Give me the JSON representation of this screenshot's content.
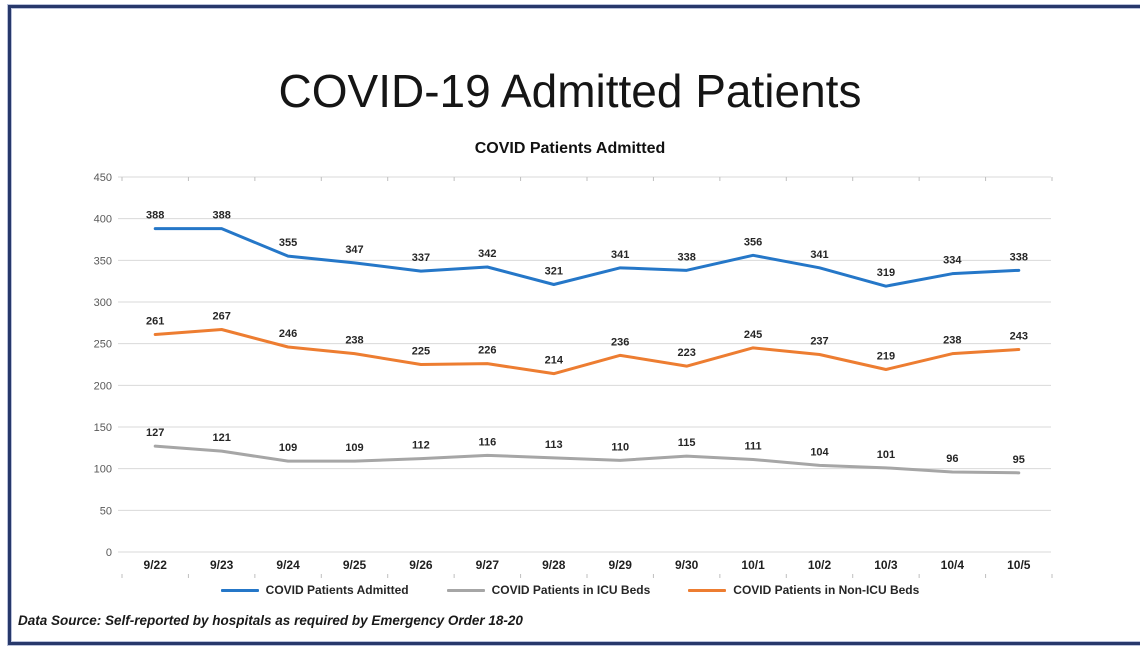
{
  "page": {
    "title": "COVID-19 Admitted Patients",
    "footer": "Data Source: Self-reported by hospitals as required by Emergency Order 18-20"
  },
  "chart_data": {
    "type": "line",
    "title": "COVID Patients Admitted",
    "categories": [
      "9/22",
      "9/23",
      "9/24",
      "9/25",
      "9/26",
      "9/27",
      "9/28",
      "9/29",
      "9/30",
      "10/1",
      "10/2",
      "10/3",
      "10/4",
      "10/5"
    ],
    "series": [
      {
        "name": "COVID Patients Admitted",
        "color": "#2577C8",
        "values": [
          388,
          388,
          355,
          347,
          337,
          342,
          321,
          341,
          338,
          356,
          341,
          319,
          334,
          338
        ]
      },
      {
        "name": "COVID Patients in ICU Beds",
        "color": "#A6A6A6",
        "values": [
          127,
          121,
          109,
          109,
          112,
          116,
          113,
          110,
          115,
          111,
          104,
          101,
          96,
          95
        ]
      },
      {
        "name": "COVID Patients in Non-ICU Beds",
        "color": "#ED7D31",
        "values": [
          261,
          267,
          246,
          238,
          225,
          226,
          214,
          236,
          223,
          245,
          237,
          219,
          238,
          243
        ]
      }
    ],
    "ylim": [
      0,
      450
    ],
    "ytick_step": 50,
    "grid": true,
    "legend_position": "bottom",
    "data_labels": true,
    "gridline_color": "#d9d9d9",
    "tick_color": "#bfbfbf",
    "axis_label_color": "#595959",
    "data_label_color": "#262626"
  }
}
